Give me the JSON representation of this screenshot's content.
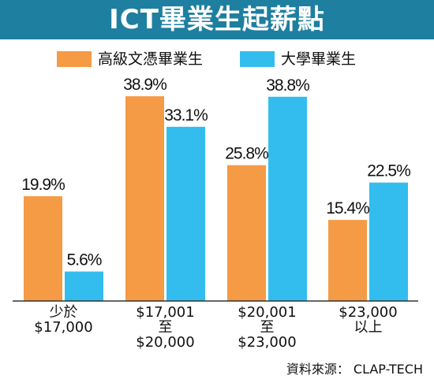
{
  "title": "ICT畢業生起薪點",
  "source": "資料來源： CLAP-TECH",
  "colors": {
    "title_bg": "#1e7fa0",
    "orange": "#f59a45",
    "blue": "#33bdef",
    "axis": "#333333"
  },
  "chart_data": {
    "type": "bar",
    "title": "ICT畢業生起薪點",
    "categories": [
      [
        "少於",
        "$17,000"
      ],
      [
        "$17,001",
        "至",
        "$20,000"
      ],
      [
        "$20,001",
        "至",
        "$23,000"
      ],
      [
        "$23,000",
        "以上"
      ]
    ],
    "series": [
      {
        "name": "高級文憑畢業生",
        "values": [
          19.9,
          38.9,
          25.8,
          15.4
        ],
        "labels": [
          "19.9%",
          "38.9%",
          "25.8%",
          "15.4%"
        ]
      },
      {
        "name": "大學畢業生",
        "values": [
          5.6,
          33.1,
          38.8,
          22.5
        ],
        "labels": [
          "5.6%",
          "33.1%",
          "38.8%",
          "22.5%"
        ]
      }
    ],
    "unit": "%",
    "ylim": [
      0,
      40
    ],
    "grid": false,
    "legend_position": "top"
  }
}
